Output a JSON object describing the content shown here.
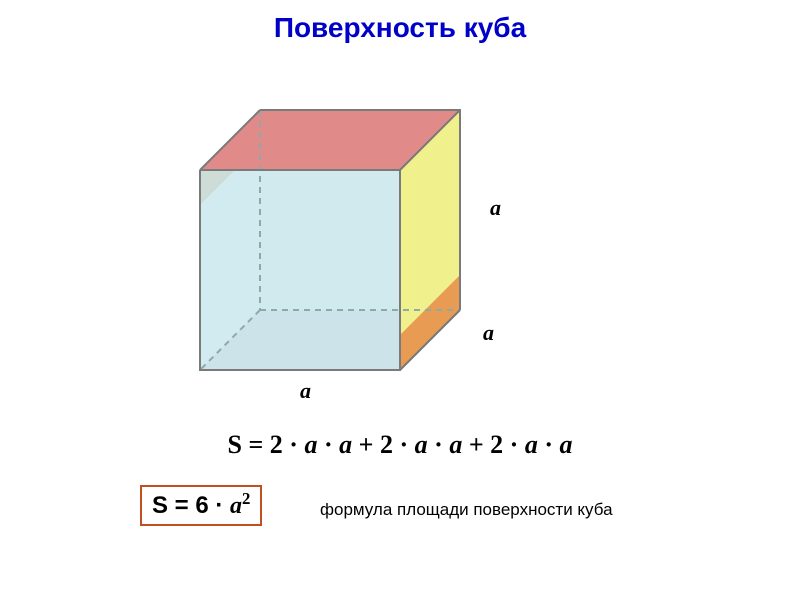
{
  "title": {
    "text": "Поверхность куба",
    "color": "#0000c8",
    "fontsize": 28
  },
  "cube": {
    "front": {
      "fill": "#c9e7ef",
      "stroke": "#7a7a7a"
    },
    "top": {
      "fill": "#e08a8a",
      "stroke": "#7a7a7a"
    },
    "right": {
      "fill": "#f0f08c",
      "stroke": "#7a7a7a"
    },
    "back": {
      "fill": "#f8f6e6",
      "stroke": "#7a7a7a"
    },
    "bottom": {
      "fill": "#dcc7c7",
      "stroke": "#7a7a7a"
    },
    "left_back_edge": {
      "fill": "#e7964f"
    },
    "right_front_edge": {
      "fill": "#e7964f"
    },
    "hidden_stroke": "#8fa8a8",
    "dash": "6,5",
    "linewidth": 2
  },
  "labels": {
    "a_right_top": "a",
    "a_right_bottom": "a",
    "a_bottom": "a",
    "fontsize": 22,
    "color": "#000000"
  },
  "formula_long": {
    "text_plain": "S = 2 · a · a + 2 · a · a + 2 · a · a",
    "fontsize": 26,
    "color": "#000000"
  },
  "formula_box": {
    "S_prefix": "S = 6 · ",
    "var": "a",
    "exp": "2",
    "fontsize": 24,
    "border_color": "#c05020",
    "text_color": "#000000"
  },
  "caption": {
    "text": "формула площади поверхности куба",
    "fontsize": 17,
    "color": "#000000"
  }
}
